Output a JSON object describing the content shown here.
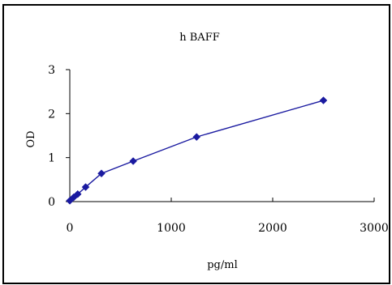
{
  "chart_data": {
    "type": "line",
    "title": "h BAFF",
    "xlabel": "pg/ml",
    "ylabel": "OD",
    "xlim": [
      0,
      3000
    ],
    "ylim": [
      0,
      3
    ],
    "xticks": [
      0,
      1000,
      2000,
      3000
    ],
    "yticks": [
      0,
      1,
      2,
      3
    ],
    "xtick_labels": [
      "0",
      "1000",
      "2000",
      "3000"
    ],
    "ytick_labels": [
      "0",
      "1",
      "2",
      "3"
    ],
    "grid": false,
    "legend": "none",
    "series": [
      {
        "color": "#1a1aa0",
        "marker": "diamond",
        "x": [
          0,
          39,
          78,
          156,
          312,
          625,
          1250,
          2500
        ],
        "y": [
          0.02,
          0.1,
          0.17,
          0.33,
          0.64,
          0.92,
          1.47,
          2.3
        ]
      }
    ]
  }
}
